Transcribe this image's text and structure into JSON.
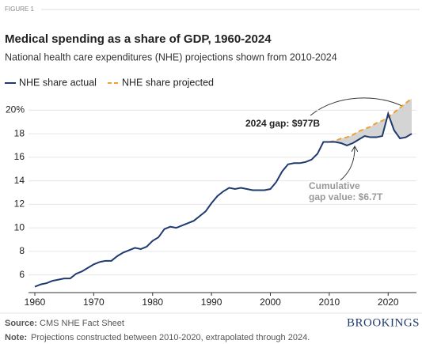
{
  "chart_data": {
    "type": "line",
    "figure_label": "FIGURE 1",
    "title": "Medical spending as a share of GDP, 1960-2024",
    "subtitle": "National health care expenditures (NHE) projections shown from 2010-2024",
    "x": [
      1960,
      1961,
      1962,
      1963,
      1964,
      1965,
      1966,
      1967,
      1968,
      1969,
      1970,
      1971,
      1972,
      1973,
      1974,
      1975,
      1976,
      1977,
      1978,
      1979,
      1980,
      1981,
      1982,
      1983,
      1984,
      1985,
      1986,
      1987,
      1988,
      1989,
      1990,
      1991,
      1992,
      1993,
      1994,
      1995,
      1996,
      1997,
      1998,
      1999,
      2000,
      2001,
      2002,
      2003,
      2004,
      2005,
      2006,
      2007,
      2008,
      2009,
      2010,
      2011,
      2012,
      2013,
      2014,
      2015,
      2016,
      2017,
      2018,
      2019,
      2020,
      2021,
      2022,
      2023,
      2024
    ],
    "series": [
      {
        "name": "NHE share actual",
        "color": "#1f3a6e",
        "dashed": false,
        "values": [
          5.0,
          5.2,
          5.3,
          5.5,
          5.6,
          5.7,
          5.7,
          6.1,
          6.3,
          6.6,
          6.9,
          7.1,
          7.2,
          7.2,
          7.6,
          7.9,
          8.1,
          8.3,
          8.2,
          8.4,
          8.9,
          9.2,
          9.9,
          10.1,
          10.0,
          10.2,
          10.4,
          10.6,
          11.0,
          11.4,
          12.1,
          12.7,
          13.1,
          13.4,
          13.3,
          13.4,
          13.3,
          13.2,
          13.2,
          13.2,
          13.3,
          13.9,
          14.8,
          15.4,
          15.5,
          15.5,
          15.6,
          15.8,
          16.3,
          17.3,
          17.3,
          17.3,
          17.2,
          17.0,
          17.2,
          17.5,
          17.8,
          17.7,
          17.7,
          17.8,
          19.7,
          18.3,
          17.6,
          17.7,
          18.0
        ]
      },
      {
        "name": "NHE share projected",
        "color": "#f0a030",
        "dashed": true,
        "values": [
          null,
          null,
          null,
          null,
          null,
          null,
          null,
          null,
          null,
          null,
          null,
          null,
          null,
          null,
          null,
          null,
          null,
          null,
          null,
          null,
          null,
          null,
          null,
          null,
          null,
          null,
          null,
          null,
          null,
          null,
          null,
          null,
          null,
          null,
          null,
          null,
          null,
          null,
          null,
          null,
          null,
          null,
          null,
          null,
          null,
          null,
          null,
          null,
          null,
          null,
          17.3,
          17.4,
          17.6,
          17.7,
          17.9,
          18.2,
          18.4,
          18.6,
          18.9,
          19.1,
          19.4,
          19.8,
          20.2,
          20.6,
          21.0
        ]
      }
    ],
    "gap_fill": "#d4d4d4",
    "xlim": [
      1960,
      2024
    ],
    "xticks": [
      1960,
      1970,
      1980,
      1990,
      2000,
      2010,
      2020
    ],
    "ylim": [
      4.5,
      21.5
    ],
    "yticks": [
      6,
      8,
      10,
      12,
      14,
      16,
      18,
      {
        "value": 20,
        "label": "20%"
      }
    ],
    "grid": true,
    "gap_annotation": "2024 gap: $977B",
    "cumulative_annotation": [
      "Cumulative",
      "gap value: $6.7T"
    ],
    "source": {
      "label": "Source:",
      "text": "CMS NHE Fact Sheet"
    },
    "note": {
      "label": "Note:",
      "text": "Projections constructed between 2010-2020, extrapolated through 2024."
    },
    "brand": "BROOKINGS"
  }
}
